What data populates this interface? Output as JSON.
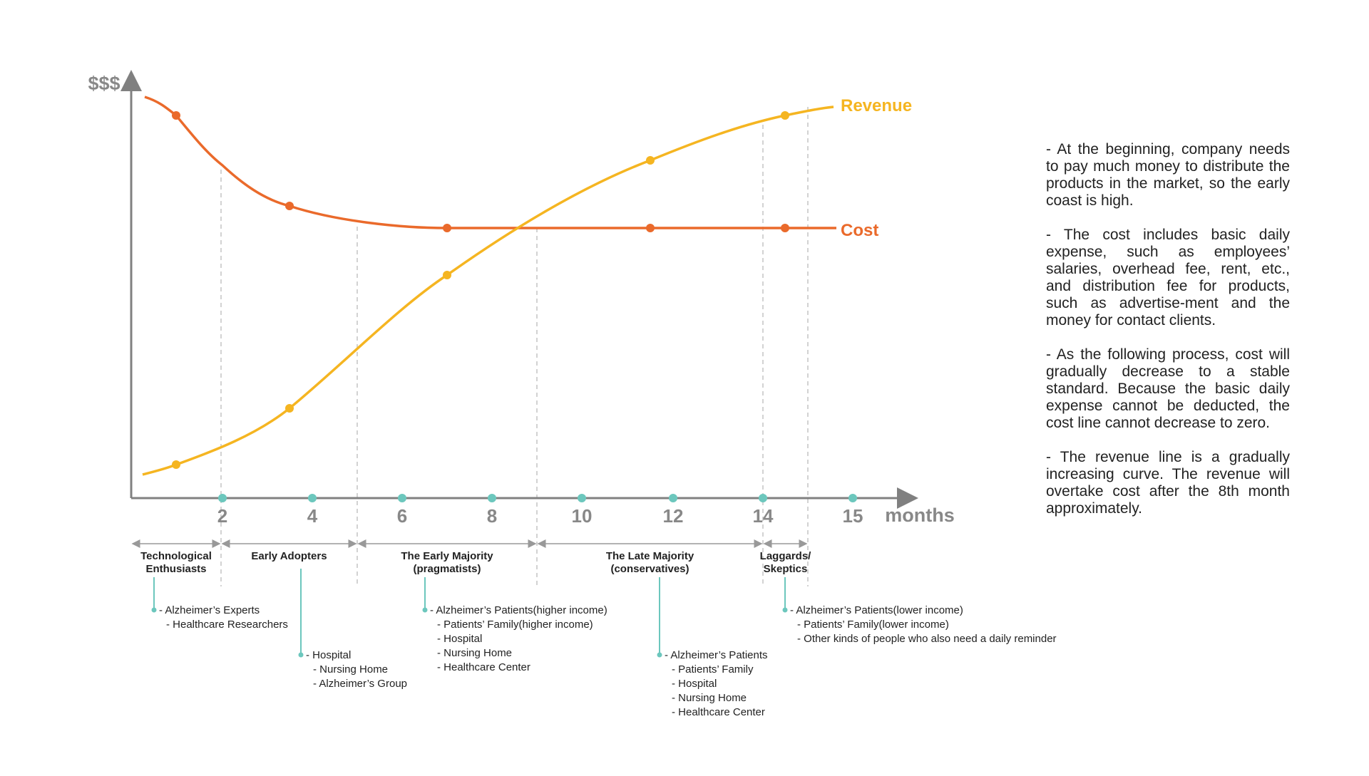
{
  "axes": {
    "y_label": "$$$",
    "x_label": "months",
    "x_ticks": [
      2,
      4,
      6,
      8,
      10,
      12,
      14,
      15
    ]
  },
  "curves": {
    "revenue": "Revenue",
    "cost": "Cost"
  },
  "segments": [
    {
      "label": [
        "Technological",
        "Enthusiasts"
      ],
      "items": [
        "- Alzheimer’s Experts",
        "- Healthcare Researchers"
      ]
    },
    {
      "label": [
        "Early Adopters"
      ],
      "items": [
        "- Hospital",
        "- Nursing Home",
        "- Alzheimer’s Group"
      ]
    },
    {
      "label": [
        "The Early Majority",
        "(pragmatists)"
      ],
      "items": [
        "- Alzheimer’s Patients(higher income)",
        "- Patients’ Family(higher income)",
        "- Hospital",
        "- Nursing Home",
        "- Healthcare Center"
      ]
    },
    {
      "label": [
        "The Late Majority",
        "(conservatives)"
      ],
      "items": [
        "- Alzheimer’s Patients",
        "- Patients’ Family",
        "- Hospital",
        "- Nursing Home",
        "- Healthcare Center"
      ]
    },
    {
      "label": [
        "Laggards/",
        "Skeptics"
      ],
      "items": [
        "- Alzheimer’s Patients(lower income)",
        "- Patients’ Family(lower income)",
        "- Other kinds of people who also need a daily reminder"
      ]
    }
  ],
  "notes": [
    "- At the beginning, company needs to pay much money to distribute the products in the market, so the early coast is high.",
    "- The cost includes basic daily expense, such as employees’ salaries, overhead fee, rent, etc., and distribution fee for products, such as advertise-ment and the money for contact clients.",
    "- As the following process, cost will gradually decrease to a stable standard. Because the basic daily expense cannot be deducted, the cost line cannot decrease to zero.",
    "- The revenue line is a gradually increasing curve. The revenue will overtake cost after the 8th month approximately."
  ]
}
